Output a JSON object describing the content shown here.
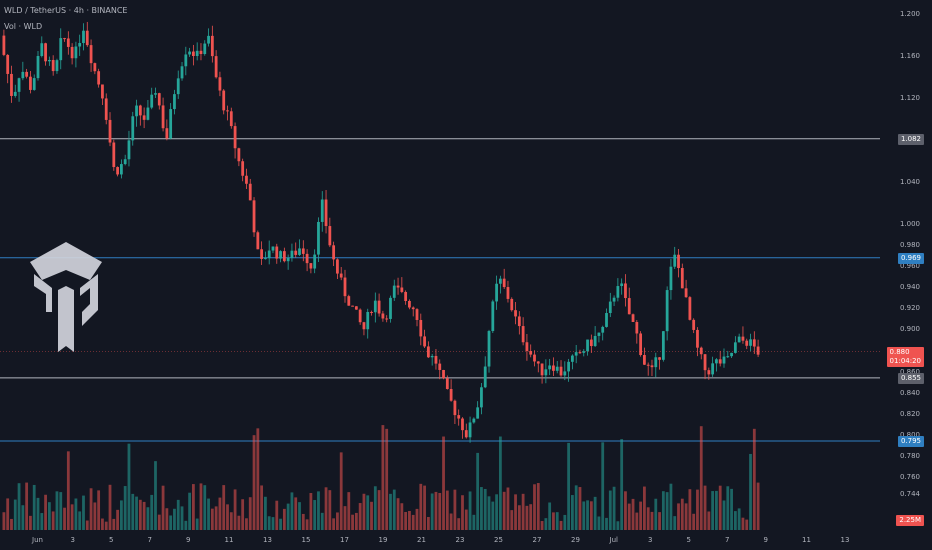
{
  "legend": {
    "symbol_line": "WLD / TetherUS · 4h · BINANCE",
    "volume_line": "Vol · WLD"
  },
  "colors": {
    "background": "#131722",
    "up": "#26a69a",
    "down": "#ef5350",
    "level_gray": "#b2b5be",
    "level_blue": "#2f7fc1",
    "text": "#b2b5be"
  },
  "chart_data": {
    "type": "candlestick",
    "title": "WLD / TetherUS · 4h · BINANCE",
    "ylim": [
      0.72,
      1.21
    ],
    "y_ticks": [
      "1.200",
      "1.160",
      "1.120",
      "1.040",
      "1.000",
      "0.980",
      "0.960",
      "0.940",
      "0.920",
      "0.900",
      "0.860",
      "0.840",
      "0.820",
      "0.800",
      "0.780",
      "0.760",
      "0.744"
    ],
    "x_ticks": [
      "Jun",
      "3",
      "5",
      "7",
      "9",
      "11",
      "13",
      "15",
      "17",
      "19",
      "21",
      "23",
      "25",
      "27",
      "29",
      "Jul",
      "3",
      "5",
      "7",
      "9",
      "11",
      "13"
    ],
    "horizontal_levels": [
      {
        "value": 1.082,
        "label": "1.082",
        "color": "#b2b5be"
      },
      {
        "value": 0.969,
        "label": "0.969",
        "color": "#2f7fc1"
      },
      {
        "value": 0.855,
        "label": "0.855",
        "color": "#b2b5be"
      },
      {
        "value": 0.795,
        "label": "0.795",
        "color": "#2f7fc1"
      }
    ],
    "last_price": {
      "value": 0.88,
      "label": "0.880",
      "countdown": "01:04:20"
    },
    "volume_last": "2.25M",
    "price_path": [
      [
        0,
        1.18
      ],
      [
        6,
        1.12
      ],
      [
        10,
        1.15
      ],
      [
        15,
        1.13
      ],
      [
        20,
        1.17
      ],
      [
        26,
        1.14
      ],
      [
        30,
        1.18
      ],
      [
        36,
        1.16
      ],
      [
        40,
        1.19
      ],
      [
        45,
        1.15
      ],
      [
        50,
        1.12
      ],
      [
        55,
        1.05
      ],
      [
        60,
        1.06
      ],
      [
        65,
        1.11
      ],
      [
        70,
        1.1
      ],
      [
        75,
        1.13
      ],
      [
        80,
        1.08
      ],
      [
        85,
        1.14
      ],
      [
        90,
        1.17
      ],
      [
        95,
        1.16
      ],
      [
        100,
        1.18
      ],
      [
        105,
        1.13
      ],
      [
        110,
        1.1
      ],
      [
        115,
        1.06
      ],
      [
        120,
        1.03
      ],
      [
        125,
        0.96
      ],
      [
        130,
        0.98
      ],
      [
        135,
        0.97
      ],
      [
        140,
        0.97
      ],
      [
        145,
        0.98
      ],
      [
        150,
        0.96
      ],
      [
        155,
        1.02
      ],
      [
        160,
        0.97
      ],
      [
        165,
        0.94
      ],
      [
        170,
        0.92
      ],
      [
        175,
        0.9
      ],
      [
        180,
        0.93
      ],
      [
        185,
        0.91
      ],
      [
        190,
        0.94
      ],
      [
        195,
        0.93
      ],
      [
        200,
        0.92
      ],
      [
        205,
        0.88
      ],
      [
        210,
        0.87
      ],
      [
        215,
        0.84
      ],
      [
        220,
        0.82
      ],
      [
        225,
        0.8
      ],
      [
        230,
        0.83
      ],
      [
        233,
        0.86
      ],
      [
        236,
        0.91
      ],
      [
        240,
        0.95
      ],
      [
        245,
        0.93
      ],
      [
        250,
        0.9
      ],
      [
        255,
        0.88
      ],
      [
        260,
        0.86
      ],
      [
        265,
        0.87
      ],
      [
        270,
        0.86
      ],
      [
        275,
        0.87
      ],
      [
        280,
        0.88
      ],
      [
        285,
        0.89
      ],
      [
        290,
        0.9
      ],
      [
        295,
        0.93
      ],
      [
        298,
        0.95
      ],
      [
        302,
        0.92
      ],
      [
        306,
        0.9
      ],
      [
        310,
        0.87
      ],
      [
        314,
        0.86
      ],
      [
        318,
        0.88
      ],
      [
        322,
        0.95
      ],
      [
        325,
        0.97
      ],
      [
        328,
        0.95
      ],
      [
        332,
        0.91
      ],
      [
        336,
        0.88
      ],
      [
        340,
        0.86
      ],
      [
        345,
        0.87
      ],
      [
        350,
        0.87
      ],
      [
        355,
        0.89
      ],
      [
        360,
        0.89
      ],
      [
        365,
        0.88
      ]
    ]
  }
}
